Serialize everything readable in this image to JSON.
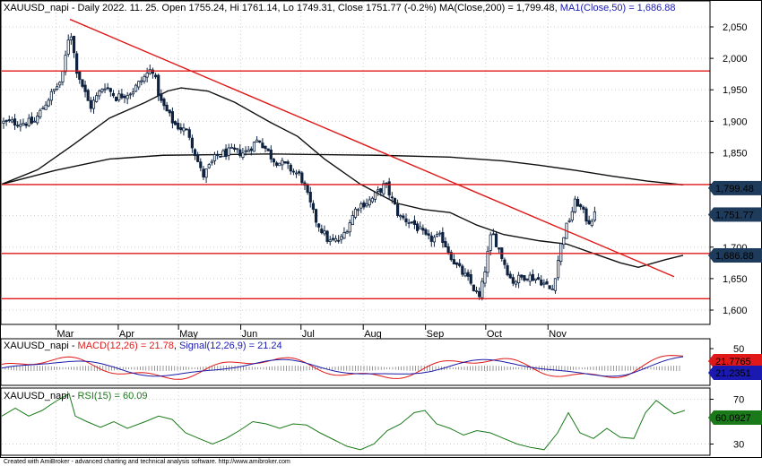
{
  "header": {
    "symbol": "XAUUSD_napi",
    "price_info": " - Daily 2022. 11. 25. Open 1755.24, Hi 1761.14, Lo 1749.31, Close 1751.77 (-0.2%) ",
    "ma200_text": "MA(Close,200) = 1,799.48, ",
    "ma50_text": "MA1(Close,50) = 1,686.88"
  },
  "macd_header": {
    "prefix": "XAUUSD_napi - ",
    "macd_text": "MACD(12,26) = 21.78",
    "sep": ", ",
    "signal_text": "Signal(12,26,9) = 21.24"
  },
  "rsi_header": {
    "prefix": "XAUUSD_napi - ",
    "rsi_text": "RSI(15) = 60.09"
  },
  "footer": "Created with AmiBroker - advanced charting and technical analysis software. http://www.amibroker.com",
  "colors": {
    "candle": "#0f2340",
    "ma": "#101010",
    "trend": "#e01818",
    "macd": "#e01818",
    "signal": "#1a1aa8",
    "rsi": "#1a7a1a",
    "tag_dark": "#1f3b5c",
    "tag_red": "#e01818",
    "tag_blue": "#1a1ab0",
    "tag_green": "#1a7a1a"
  },
  "chart_data": [
    {
      "type": "candlestick",
      "title": "XAUUSD_napi - Daily 2022. 11. 25.",
      "x_tick_labels": [
        "Mar",
        "Apr",
        "May",
        "Jun",
        "Jul",
        "Aug",
        "Sep",
        "Oct",
        "Nov"
      ],
      "y_tick_labels": [
        "2,050",
        "2,000",
        "1,950",
        "1,900",
        "1,850",
        "1,800",
        "1,750",
        "1,700",
        "1,650",
        "1,600"
      ],
      "ylim": [
        1575,
        2080
      ],
      "ohlc_last": {
        "open": 1755.24,
        "high": 1761.14,
        "low": 1749.31,
        "close": 1751.77,
        "change_pct": -0.2
      },
      "price_tags": [
        "1,799.48",
        "1,751.77",
        "1,686.88"
      ],
      "close_path": [
        [
          "2022-02-18",
          1898
        ],
        [
          "2022-02-25",
          1935
        ],
        [
          "2022-03-04",
          1967
        ],
        [
          "2022-03-08",
          2050
        ],
        [
          "2022-03-11",
          1985
        ],
        [
          "2022-03-18",
          1922
        ],
        [
          "2022-03-25",
          1958
        ],
        [
          "2022-03-31",
          1938
        ],
        [
          "2022-04-08",
          1948
        ],
        [
          "2022-04-18",
          1985
        ],
        [
          "2022-04-22",
          1932
        ],
        [
          "2022-04-29",
          1895
        ],
        [
          "2022-05-06",
          1882
        ],
        [
          "2022-05-13",
          1812
        ],
        [
          "2022-05-20",
          1845
        ],
        [
          "2022-05-27",
          1852
        ],
        [
          "2022-06-03",
          1850
        ],
        [
          "2022-06-10",
          1872
        ],
        [
          "2022-06-17",
          1840
        ],
        [
          "2022-06-24",
          1828
        ],
        [
          "2022-07-01",
          1812
        ],
        [
          "2022-07-08",
          1745
        ],
        [
          "2022-07-15",
          1708
        ],
        [
          "2022-07-21",
          1712
        ],
        [
          "2022-07-29",
          1765
        ],
        [
          "2022-08-05",
          1775
        ],
        [
          "2022-08-12",
          1800
        ],
        [
          "2022-08-19",
          1748
        ],
        [
          "2022-08-26",
          1738
        ],
        [
          "2022-09-02",
          1712
        ],
        [
          "2022-09-09",
          1716
        ],
        [
          "2022-09-16",
          1672
        ],
        [
          "2022-09-23",
          1645
        ],
        [
          "2022-09-28",
          1618
        ],
        [
          "2022-10-04",
          1725
        ],
        [
          "2022-10-14",
          1645
        ],
        [
          "2022-10-21",
          1655
        ],
        [
          "2022-10-28",
          1648
        ],
        [
          "2022-11-03",
          1630
        ],
        [
          "2022-11-08",
          1712
        ],
        [
          "2022-11-15",
          1775
        ],
        [
          "2022-11-21",
          1740
        ],
        [
          "2022-11-25",
          1752
        ]
      ],
      "series": [
        {
          "name": "MA(Close,200)",
          "last": 1799.48,
          "values": [
            [
              0,
              1800
            ],
            [
              60,
              1822
            ],
            [
              120,
              1840
            ],
            [
              180,
              1846
            ],
            [
              240,
              1847
            ],
            [
              300,
              1848
            ],
            [
              360,
              1847
            ],
            [
              420,
              1846
            ],
            [
              500,
              1843
            ],
            [
              560,
              1837
            ],
            [
              600,
              1830
            ],
            [
              640,
              1822
            ],
            [
              680,
              1813
            ],
            [
              720,
              1805
            ],
            [
              760,
              1799
            ]
          ]
        },
        {
          "name": "MA1(Close,50)",
          "last": 1686.88,
          "values": [
            [
              0,
              1800
            ],
            [
              40,
              1823
            ],
            [
              80,
              1863
            ],
            [
              120,
              1905
            ],
            [
              160,
              1930
            ],
            [
              185,
              1948
            ],
            [
              200,
              1953
            ],
            [
              230,
              1948
            ],
            [
              260,
              1930
            ],
            [
              300,
              1898
            ],
            [
              330,
              1876
            ],
            [
              360,
              1840
            ],
            [
              400,
              1800
            ],
            [
              440,
              1770
            ],
            [
              470,
              1760
            ],
            [
              500,
              1755
            ],
            [
              530,
              1735
            ],
            [
              560,
              1720
            ],
            [
              600,
              1710
            ],
            [
              630,
              1705
            ],
            [
              660,
              1690
            ],
            [
              690,
              1675
            ],
            [
              710,
              1668
            ],
            [
              740,
              1680
            ],
            [
              760,
              1687
            ]
          ]
        }
      ],
      "trendlines": {
        "descending": [
          [
            78,
            2062
          ],
          [
            752,
            1653
          ]
        ],
        "horizontal_levels": [
          1980,
          1799.48,
          1690,
          1618
        ]
      },
      "grid": true
    },
    {
      "type": "line",
      "title": "XAUUSD_napi - MACD(12,26) = 21.78, Signal(12,26,9) = 21.24",
      "y_tick_labels": [
        "50"
      ],
      "price_tags": [
        "21.7765",
        "21.2351"
      ],
      "series": [
        {
          "name": "MACD(12,26)",
          "last": 21.78
        },
        {
          "name": "Signal(12,26,9)",
          "last": 21.24
        }
      ],
      "grid": true
    },
    {
      "type": "line",
      "title": "XAUUSD_napi - RSI(15) = 60.09",
      "y_tick_labels": [
        "70",
        "30"
      ],
      "price_tags": [
        "60.0927"
      ],
      "ylim": [
        20,
        80
      ],
      "series": [
        {
          "name": "RSI(15)",
          "last": 60.09,
          "values": [
            [
              0,
              55
            ],
            [
              15,
              62
            ],
            [
              30,
              55
            ],
            [
              45,
              60
            ],
            [
              60,
              68
            ],
            [
              75,
              75
            ],
            [
              82,
              55
            ],
            [
              95,
              50
            ],
            [
              110,
              45
            ],
            [
              125,
              50
            ],
            [
              140,
              44
            ],
            [
              160,
              50
            ],
            [
              175,
              55
            ],
            [
              190,
              52
            ],
            [
              205,
              40
            ],
            [
              220,
              35
            ],
            [
              235,
              30
            ],
            [
              250,
              35
            ],
            [
              265,
              42
            ],
            [
              280,
              50
            ],
            [
              295,
              48
            ],
            [
              310,
              44
            ],
            [
              325,
              48
            ],
            [
              340,
              47
            ],
            [
              355,
              40
            ],
            [
              370,
              34
            ],
            [
              385,
              28
            ],
            [
              400,
              25
            ],
            [
              415,
              30
            ],
            [
              430,
              42
            ],
            [
              445,
              48
            ],
            [
              460,
              58
            ],
            [
              472,
              60
            ],
            [
              485,
              48
            ],
            [
              500,
              44
            ],
            [
              515,
              38
            ],
            [
              530,
              42
            ],
            [
              545,
              40
            ],
            [
              560,
              35
            ],
            [
              575,
              30
            ],
            [
              590,
              27
            ],
            [
              605,
              25
            ],
            [
              620,
              40
            ],
            [
              632,
              58
            ],
            [
              645,
              40
            ],
            [
              660,
              35
            ],
            [
              675,
              44
            ],
            [
              690,
              36
            ],
            [
              705,
              35
            ],
            [
              718,
              58
            ],
            [
              730,
              69
            ],
            [
              740,
              63
            ],
            [
              750,
              57
            ],
            [
              762,
              60
            ]
          ]
        }
      ],
      "grid": true
    }
  ]
}
